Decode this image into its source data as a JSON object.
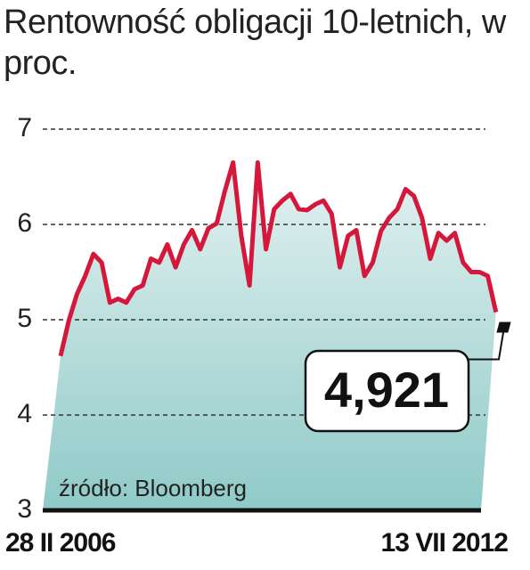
{
  "chart_data": {
    "type": "line",
    "title": "Rentowność obligacji 10-letnich, w proc.",
    "source": "źródło: Bloomberg",
    "categories": [
      "28 II 2006",
      null,
      null,
      null,
      null,
      null,
      null,
      null,
      null,
      null,
      null,
      null,
      null,
      null,
      null,
      null,
      null,
      null,
      null,
      null,
      null,
      null,
      null,
      null,
      null,
      null,
      null,
      null,
      null,
      null,
      null,
      null,
      null,
      null,
      null,
      null,
      null,
      null,
      null,
      null,
      null,
      null,
      null,
      null,
      null,
      null,
      null,
      null,
      null,
      null,
      null,
      null,
      null,
      null,
      "13 VII 2012"
    ],
    "series": [
      {
        "name": "Rentowność",
        "color": "#d4173a",
        "values": [
          4.62,
          4.99,
          5.27,
          5.46,
          5.69,
          5.6,
          5.18,
          5.22,
          5.18,
          5.32,
          5.36,
          5.64,
          5.6,
          5.79,
          5.55,
          5.79,
          5.94,
          5.74,
          5.96,
          6.01,
          6.35,
          6.65,
          5.88,
          5.36,
          6.65,
          5.74,
          6.16,
          6.25,
          6.32,
          6.16,
          6.15,
          6.21,
          6.25,
          6.11,
          5.55,
          5.88,
          5.94,
          5.46,
          5.6,
          5.93,
          6.07,
          6.16,
          6.37,
          6.3,
          6.07,
          5.64,
          5.91,
          5.83,
          5.91,
          5.6,
          5.5,
          5.5,
          5.46,
          5.08,
          4.921
        ],
        "value_labels": [
          null,
          null,
          null,
          null,
          null,
          null,
          null,
          null,
          null,
          null,
          null,
          null,
          null,
          null,
          null,
          null,
          null,
          null,
          null,
          null,
          null,
          null,
          null,
          null,
          null,
          null,
          null,
          null,
          null,
          null,
          null,
          null,
          null,
          null,
          null,
          null,
          null,
          null,
          null,
          null,
          null,
          null,
          null,
          null,
          null,
          null,
          null,
          null,
          null,
          null,
          null,
          null,
          null,
          null,
          "4,921"
        ]
      }
    ],
    "ylim": [
      3,
      7
    ],
    "yticks": [
      3,
      4,
      5,
      6,
      7
    ],
    "grid": true
  }
}
